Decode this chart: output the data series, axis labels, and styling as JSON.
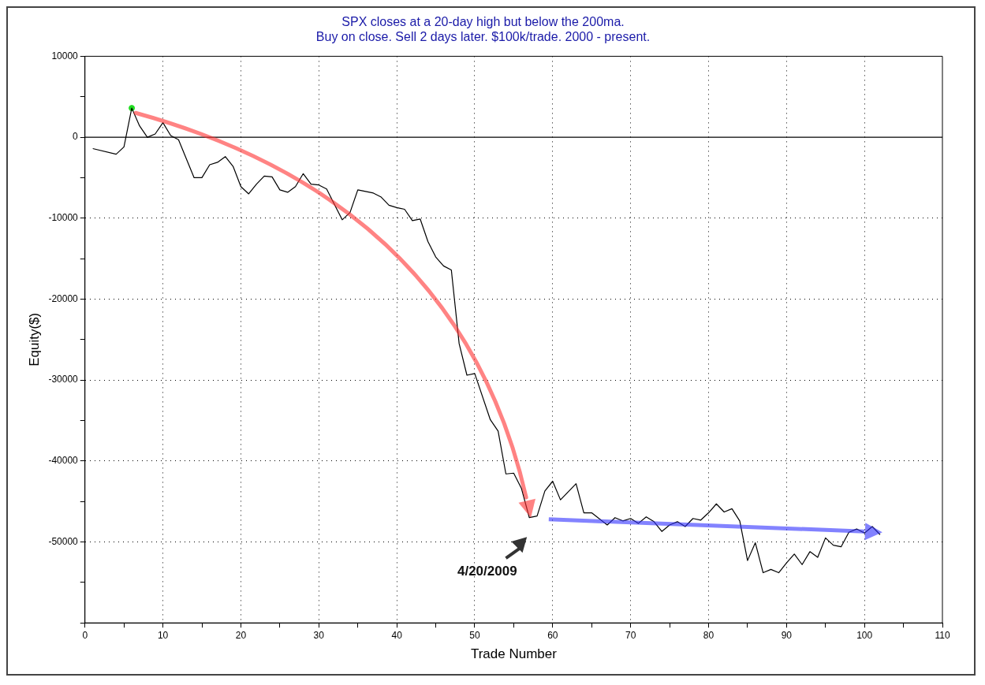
{
  "chart_data": {
    "type": "line",
    "title": "SPX closes at a 20-day high but below the 200ma.\nBuy on close. Sell 2 days later. $100k/trade. 2000 - present.",
    "xlabel": "Trade Number",
    "ylabel": "Equity($)",
    "series": [
      {
        "type": "line",
        "marker": "none",
        "color": "#000000",
        "x": [
          1,
          4,
          5,
          6,
          7,
          8,
          9,
          10,
          11,
          12,
          14,
          15,
          16,
          17,
          18,
          19,
          20,
          21,
          22,
          23,
          24,
          25,
          26,
          27,
          28,
          29,
          30,
          31,
          33,
          34,
          35,
          37,
          38,
          39,
          40,
          41,
          42,
          43,
          44,
          45,
          46,
          47,
          48,
          49,
          50,
          52,
          53,
          54,
          55,
          56,
          57,
          58,
          59,
          60,
          61,
          63,
          64,
          65,
          67,
          68,
          69,
          70,
          71,
          72,
          73,
          74,
          75,
          76,
          77,
          78,
          79,
          80,
          81,
          82,
          83,
          84,
          85,
          86,
          87,
          88,
          89,
          90,
          91,
          92,
          93,
          94,
          95,
          96,
          97,
          98,
          99,
          100,
          101,
          102
        ],
        "values": [
          -1400,
          -2100,
          -1200,
          3600,
          1400,
          0,
          400,
          1800,
          200,
          -300,
          -5000,
          -5000,
          -3400,
          -3100,
          -2400,
          -3600,
          -6100,
          -7000,
          -5800,
          -4800,
          -4900,
          -6500,
          -6800,
          -6100,
          -4500,
          -5800,
          -5900,
          -6400,
          -10200,
          -9300,
          -6500,
          -6900,
          -7400,
          -8400,
          -8700,
          -8900,
          -10300,
          -10100,
          -12900,
          -14800,
          -15900,
          -16400,
          -25500,
          -29400,
          -29200,
          -34900,
          -36300,
          -41600,
          -41500,
          -43400,
          -47000,
          -46800,
          -43700,
          -42500,
          -44800,
          -42800,
          -46400,
          -46400,
          -47900,
          -47000,
          -47400,
          -47100,
          -47700,
          -46900,
          -47500,
          -48700,
          -47900,
          -47500,
          -48100,
          -47100,
          -47300,
          -46400,
          -45300,
          -46300,
          -45900,
          -47400,
          -52300,
          -50100,
          -53800,
          -53400,
          -53800,
          -52600,
          -51500,
          -52800,
          -51200,
          -51900,
          -49500,
          -50400,
          -50600,
          -48800,
          -48400,
          -48900,
          -48100,
          -49100
        ]
      },
      {
        "type": "scatter",
        "marker": "circle",
        "color": "#22dd22",
        "x": [
          6
        ],
        "values": [
          3600
        ]
      }
    ],
    "xlim": [
      0,
      110
    ],
    "xticks": [
      0,
      {
        "value": 5,
        "label": null
      },
      10,
      {
        "value": 15,
        "label": null
      },
      20,
      {
        "value": 25,
        "label": null
      },
      30,
      {
        "value": 35,
        "label": null
      },
      40,
      {
        "value": 45,
        "label": null
      },
      50,
      {
        "value": 55,
        "label": null
      },
      60,
      {
        "value": 65,
        "label": null
      },
      70,
      {
        "value": 75,
        "label": null
      },
      80,
      {
        "value": 85,
        "label": null
      },
      90,
      {
        "value": 95,
        "label": null
      },
      100,
      {
        "value": 105,
        "label": null
      },
      110
    ],
    "ylim": [
      -60000,
      10000
    ],
    "yticks": [
      {
        "value": -60000,
        "label": null
      },
      {
        "value": -55000,
        "label": null
      },
      -50000,
      {
        "value": -45000,
        "label": null
      },
      -40000,
      {
        "value": -35000,
        "label": null
      },
      -30000,
      {
        "value": -25000,
        "label": null
      },
      -20000,
      {
        "value": -15000,
        "label": null
      },
      -10000,
      {
        "value": -5000,
        "label": null
      },
      0,
      {
        "value": 5000,
        "label": null
      },
      10000
    ],
    "grid": true,
    "legend": false,
    "line_style": "solid",
    "ref_lines": [
      {
        "axis": "y",
        "value": 0,
        "color": "#000000",
        "line_style": "solid"
      }
    ],
    "annotations": [
      "4/20/2009"
    ]
  }
}
